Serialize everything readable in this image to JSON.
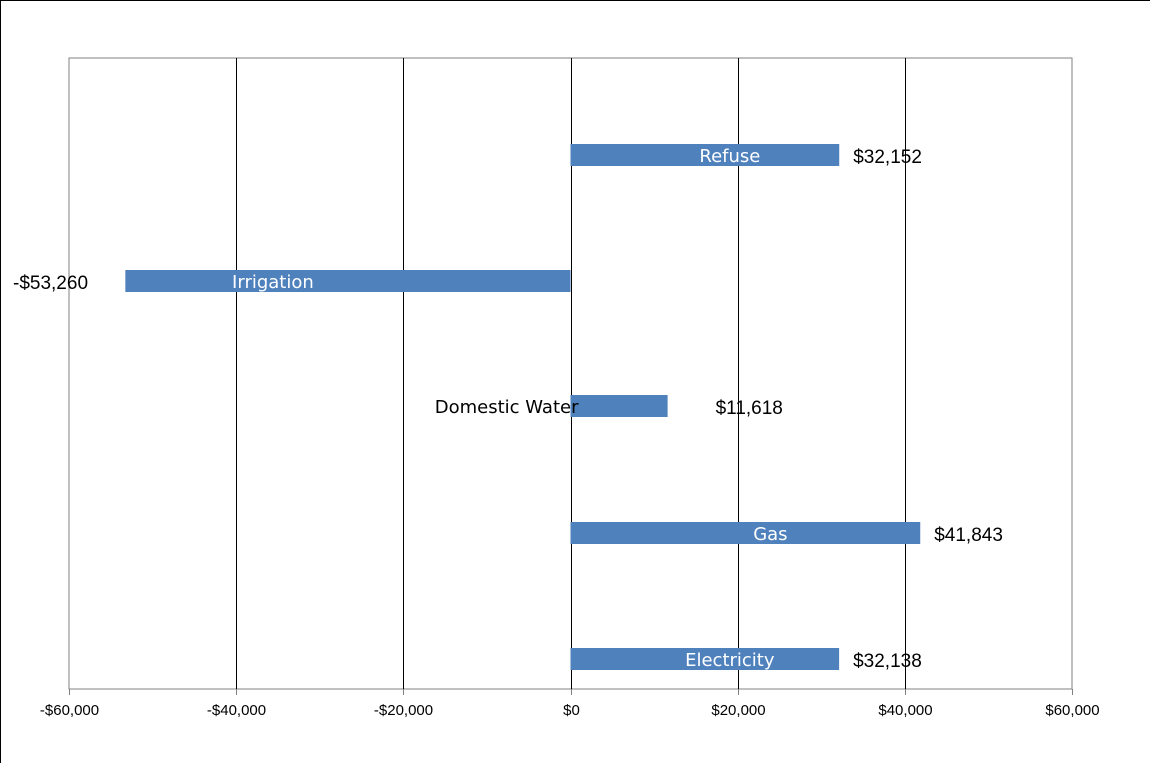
{
  "chart_data": {
    "type": "bar",
    "orientation": "horizontal",
    "categories": [
      "Refuse",
      "Irrigation",
      "Domestic  Water",
      "Gas",
      "Electricity"
    ],
    "values": [
      32152,
      -53260,
      11618,
      41843,
      32138
    ],
    "value_labels": [
      "$32,152",
      "-$53,260",
      "$11,618",
      "$41,843",
      "$32,138"
    ],
    "xlim": [
      -60000,
      60000
    ],
    "x_ticks": [
      -60000,
      -40000,
      -20000,
      0,
      20000,
      40000,
      60000
    ],
    "x_tick_labels": [
      "-$60,000",
      "-$40,000",
      "-$20,000",
      "$0",
      "$20,000",
      "$40,000",
      "$60,000"
    ],
    "grid": "vertical",
    "legend": "none",
    "bar_color": "#4f81bd",
    "category_label_colors": [
      "#ffffff",
      "#ffffff",
      "#000000",
      "#ffffff",
      "#ffffff"
    ],
    "title": "",
    "xlabel": "",
    "ylabel": ""
  }
}
